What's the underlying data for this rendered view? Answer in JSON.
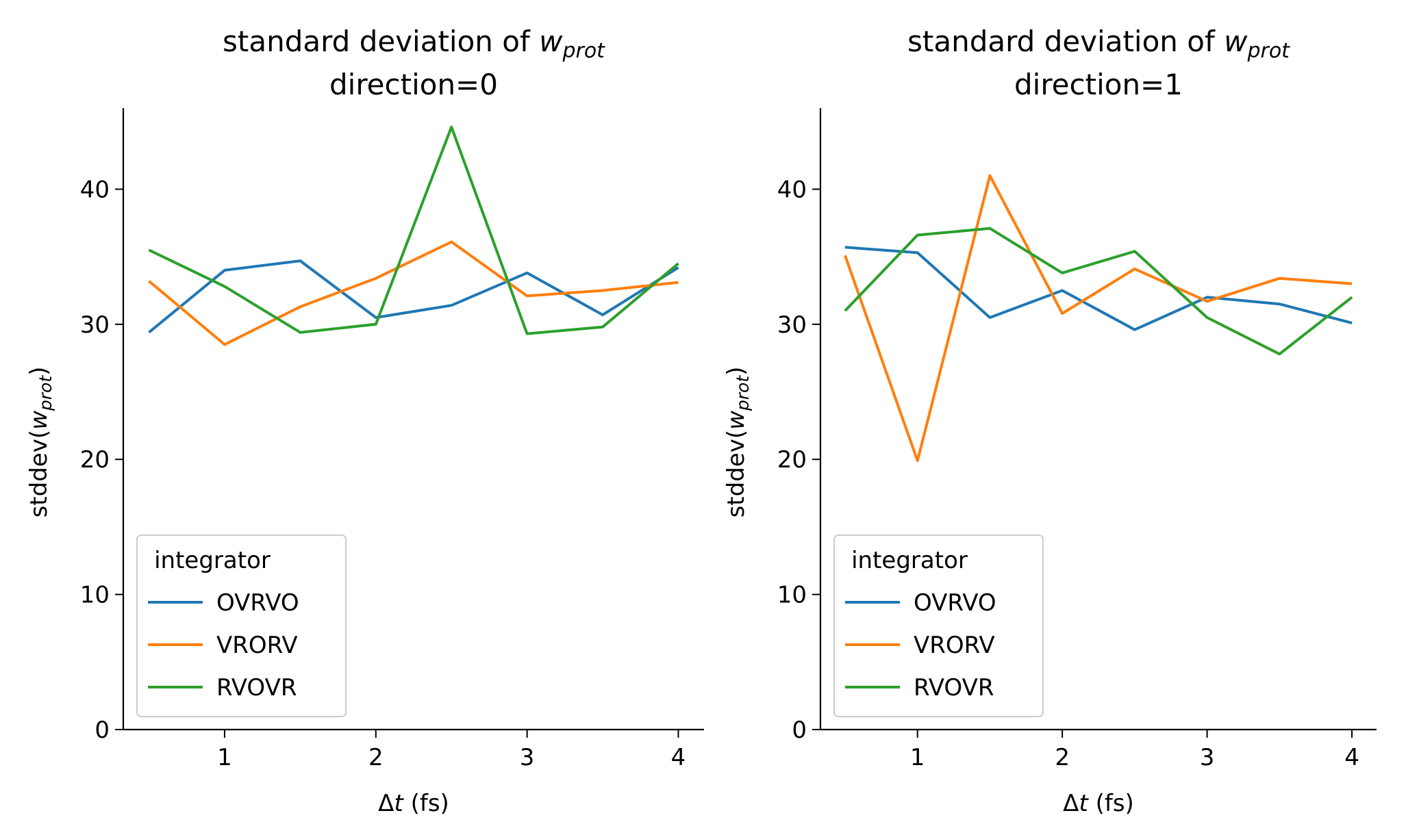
{
  "figure": {
    "colors": {
      "OVRVO": "#1f77b4",
      "VRORV": "#ff7f0e",
      "RVOVR": "#2ca02c"
    }
  },
  "chart_data": [
    {
      "type": "line",
      "title_main": "standard deviation of ",
      "title_var": "w",
      "title_sub": "prot",
      "title_line2": "direction=0",
      "xlabel_delta": "Δ",
      "xlabel_var": "t",
      "xlabel_unit": " (fs)",
      "ylabel_main": "stddev(",
      "ylabel_var": "w",
      "ylabel_sub": "prot",
      "ylabel_close": ")",
      "xlim": [
        0.33,
        4.17
      ],
      "ylim": [
        0,
        46
      ],
      "xticks": [
        "1",
        "2",
        "3",
        "4"
      ],
      "yticks": [
        "0",
        "10",
        "20",
        "30",
        "40"
      ],
      "grid": false,
      "legend": {
        "title": "integrator",
        "placement": "lower-left"
      },
      "x": [
        0.5,
        1.0,
        1.5,
        2.0,
        2.5,
        3.0,
        3.5,
        4.0
      ],
      "series": [
        {
          "name": "OVRVO",
          "values": [
            29.4,
            34.0,
            34.7,
            30.5,
            31.4,
            33.8,
            30.7,
            34.2
          ]
        },
        {
          "name": "VRORV",
          "values": [
            33.2,
            28.5,
            31.3,
            33.4,
            36.1,
            32.1,
            32.5,
            33.1
          ]
        },
        {
          "name": "RVOVR",
          "values": [
            35.5,
            32.8,
            29.4,
            30.0,
            44.6,
            29.3,
            29.8,
            34.5
          ]
        }
      ]
    },
    {
      "type": "line",
      "title_main": "standard deviation of ",
      "title_var": "w",
      "title_sub": "prot",
      "title_line2": "direction=1",
      "xlabel_delta": "Δ",
      "xlabel_var": "t",
      "xlabel_unit": " (fs)",
      "ylabel_main": "stddev(",
      "ylabel_var": "w",
      "ylabel_sub": "prot",
      "ylabel_close": ")",
      "xlim": [
        0.33,
        4.17
      ],
      "ylim": [
        0,
        46
      ],
      "xticks": [
        "1",
        "2",
        "3",
        "4"
      ],
      "yticks": [
        "0",
        "10",
        "20",
        "30",
        "40"
      ],
      "grid": false,
      "legend": {
        "title": "integrator",
        "placement": "lower-left"
      },
      "x": [
        0.5,
        1.0,
        1.5,
        2.0,
        2.5,
        3.0,
        3.5,
        4.0
      ],
      "series": [
        {
          "name": "OVRVO",
          "values": [
            35.7,
            35.3,
            30.5,
            32.5,
            29.6,
            32.0,
            31.5,
            30.1
          ]
        },
        {
          "name": "VRORV",
          "values": [
            35.1,
            19.9,
            41.0,
            30.8,
            34.1,
            31.7,
            33.4,
            33.0
          ]
        },
        {
          "name": "RVOVR",
          "values": [
            31.0,
            36.6,
            37.1,
            33.8,
            35.4,
            30.5,
            27.8,
            32.0
          ]
        }
      ]
    }
  ]
}
